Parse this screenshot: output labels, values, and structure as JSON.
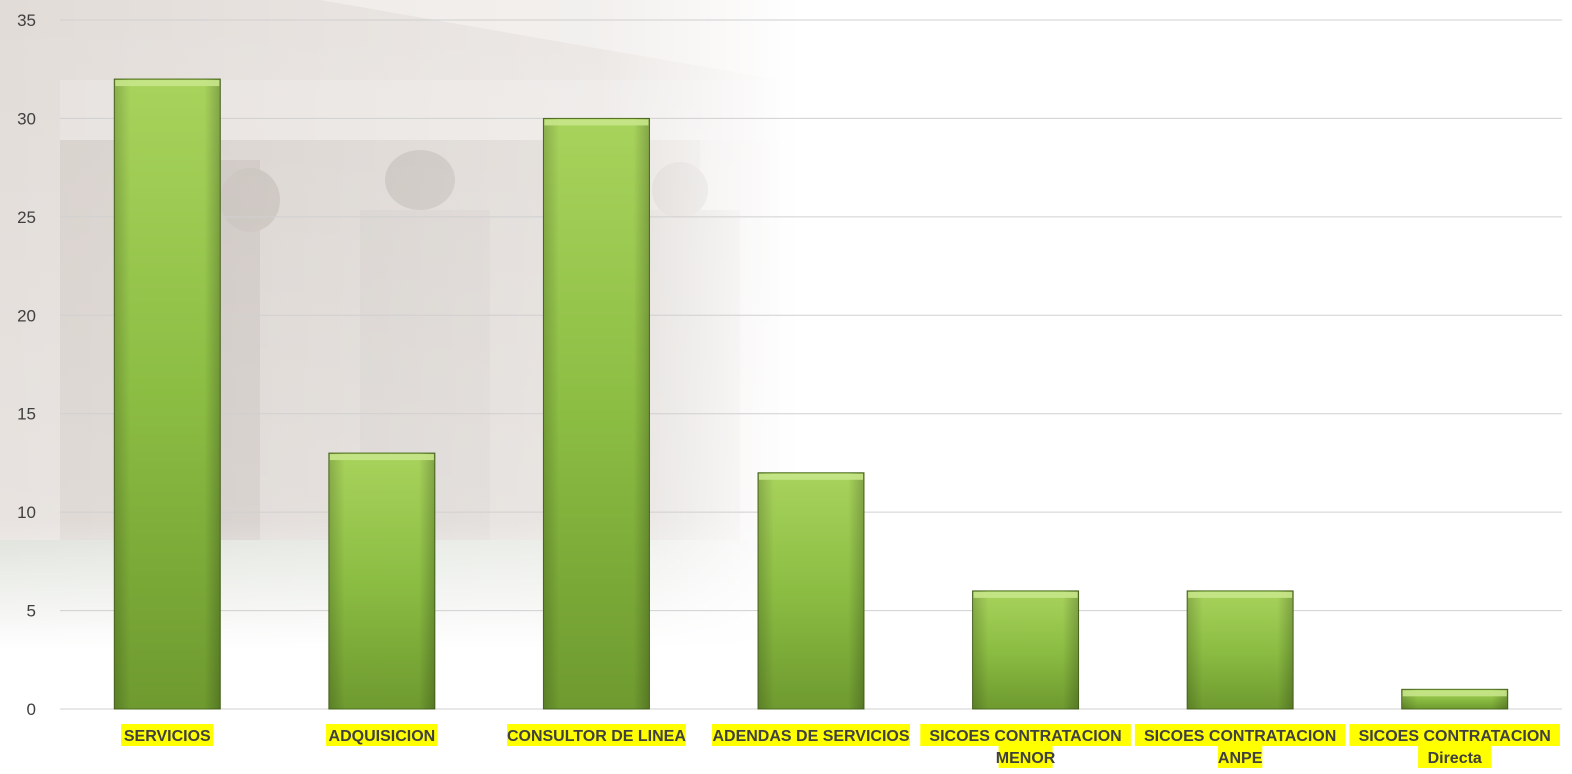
{
  "colors": {
    "bar_light": "#a8d35c",
    "bar_mid": "#8cbd43",
    "bar_dark": "#6e9a2f",
    "bar_top": "#c6e68a",
    "label_highlight": "#ffff00",
    "gridline": "#d0d0d0",
    "tick_text": "#404040",
    "category_text": "#404040"
  },
  "chart_data": {
    "type": "bar",
    "categories": [
      [
        "SERVICIOS"
      ],
      [
        "ADQUISICION"
      ],
      [
        "CONSULTOR DE LINEA"
      ],
      [
        "ADENDAS DE SERVICIOS"
      ],
      [
        "SICOES CONTRATACION",
        "MENOR"
      ],
      [
        "SICOES CONTRATACION",
        "ANPE"
      ],
      [
        "SICOES CONTRATACION",
        "Directa"
      ]
    ],
    "values": [
      32,
      13,
      30,
      12,
      6,
      6,
      1
    ],
    "ylim": [
      0,
      35
    ],
    "yticks": [
      "0",
      "5",
      "10",
      "15",
      "20",
      "25",
      "30",
      "35"
    ],
    "grid": true,
    "title": "",
    "xlabel": "",
    "ylabel": ""
  }
}
